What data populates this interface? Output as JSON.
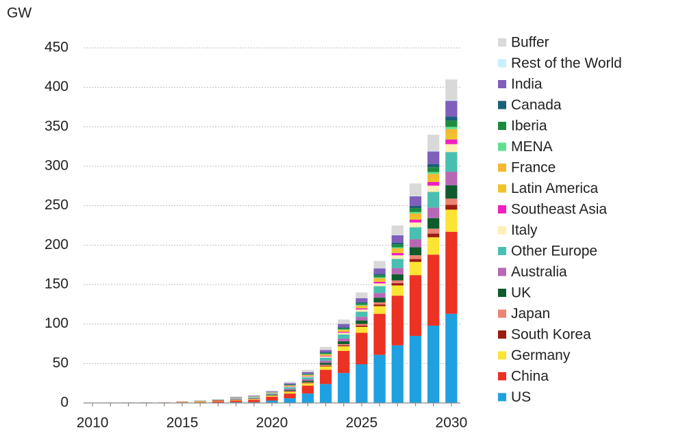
{
  "chart_data": {
    "type": "stacked_bar",
    "y_label": "GW",
    "x": [
      2010,
      2011,
      2012,
      2013,
      2014,
      2015,
      2016,
      2017,
      2018,
      2019,
      2020,
      2021,
      2022,
      2023,
      2024,
      2025,
      2026,
      2027,
      2028,
      2029,
      2030
    ],
    "xlim": [
      2009.5,
      2030.5
    ],
    "xticks": [
      2010,
      2015,
      2020,
      2025,
      2030
    ],
    "ylim": [
      0,
      450
    ],
    "yticks": [
      0,
      50,
      100,
      150,
      200,
      250,
      300,
      350,
      400,
      450
    ],
    "grid": true,
    "legend": "right",
    "series": [
      {
        "name": "US",
        "color": "#1fa0e0",
        "values": [
          0.1,
          0.1,
          0.1,
          0.1,
          0.1,
          0.2,
          0.3,
          0.5,
          1,
          1,
          3,
          6,
          12,
          24,
          38,
          49,
          61,
          73,
          85,
          98,
          113
        ]
      },
      {
        "name": "China",
        "color": "#eb3223",
        "values": [
          0,
          0.1,
          0.1,
          0.1,
          0.2,
          0.5,
          0.7,
          1.5,
          2,
          3,
          5,
          6,
          10,
          18,
          28,
          40,
          52,
          63,
          77,
          90,
          104
        ]
      },
      {
        "name": "Germany",
        "color": "#fbe433",
        "values": [
          0.1,
          0.1,
          0.2,
          0.2,
          0.3,
          0.4,
          0.7,
          0.5,
          0.7,
          0.9,
          1.2,
          2.2,
          2.9,
          4.2,
          5.8,
          7.4,
          9.7,
          12.9,
          16.8,
          22,
          28
        ]
      },
      {
        "name": "South Korea",
        "color": "#9b1c12",
        "values": [
          0.1,
          0.1,
          0.1,
          0.1,
          0.1,
          0.2,
          0.3,
          0.5,
          0.2,
          0.2,
          0.2,
          0.5,
          0.6,
          0.9,
          1.2,
          1.6,
          2.1,
          2.8,
          3.6,
          4.7,
          6
        ]
      },
      {
        "name": "Japan",
        "color": "#ec8475",
        "values": [
          0.1,
          0.1,
          0.1,
          0.2,
          0.2,
          0.4,
          0.5,
          0.5,
          0.2,
          0.2,
          0.3,
          0.6,
          0.8,
          1.2,
          1.6,
          2.1,
          2.7,
          3.6,
          4.8,
          6.2,
          8
        ]
      },
      {
        "name": "UK",
        "color": "#0f5b2c",
        "values": [
          0,
          0,
          0,
          0,
          0,
          0.1,
          0.2,
          0.3,
          0.4,
          0.5,
          0.7,
          1.3,
          1.8,
          2.6,
          3.5,
          4.5,
          5.9,
          7.8,
          10.2,
          13.4,
          17
        ]
      },
      {
        "name": "Australia",
        "color": "#b768b5",
        "values": [
          0,
          0,
          0,
          0,
          0,
          0,
          0.1,
          0.2,
          0.4,
          0.5,
          0.7,
          1.3,
          1.8,
          2.6,
          3.5,
          4.5,
          5.9,
          7.8,
          10.2,
          13.4,
          17
        ]
      },
      {
        "name": "Other Europe",
        "color": "#49bfb1",
        "values": [
          0,
          0,
          0,
          0,
          0,
          0.1,
          0.2,
          0.3,
          0.7,
          0.8,
          1,
          2,
          2.6,
          3.8,
          5.2,
          6.6,
          8.7,
          11.6,
          15.1,
          19.8,
          25
        ]
      },
      {
        "name": "Italy",
        "color": "#fdf0b4",
        "values": [
          0,
          0,
          0,
          0,
          0,
          0,
          0,
          0.2,
          0.3,
          0.3,
          0.4,
          0.8,
          1,
          1.5,
          2.1,
          2.7,
          3.5,
          4.6,
          6,
          7.9,
          10
        ]
      },
      {
        "name": "Southeast Asia",
        "color": "#f01fbf",
        "values": [
          0,
          0,
          0,
          0,
          0,
          0,
          0,
          0,
          0.2,
          0.2,
          0.2,
          0.5,
          0.6,
          0.9,
          1.2,
          1.6,
          2.1,
          2.8,
          3.6,
          4.7,
          6
        ]
      },
      {
        "name": "Latin America",
        "color": "#efc32a",
        "values": [
          0,
          0,
          0,
          0,
          0,
          0,
          0,
          0,
          0.2,
          0.2,
          0.2,
          0.5,
          0.6,
          0.9,
          1.2,
          1.6,
          2.1,
          2.8,
          3.6,
          4.7,
          6
        ]
      },
      {
        "name": "France",
        "color": "#f5b82e",
        "values": [
          0,
          0,
          0,
          0,
          0,
          0,
          0,
          0,
          0.2,
          0.2,
          0.3,
          0.5,
          0.7,
          1,
          1.4,
          1.8,
          2.4,
          3.2,
          4.2,
          5.5,
          7
        ]
      },
      {
        "name": "MENA",
        "color": "#5ee08f",
        "values": [
          0,
          0,
          0,
          0,
          0,
          0,
          0,
          0,
          0.1,
          0.1,
          0.1,
          0.2,
          0.3,
          0.5,
          0.6,
          0.8,
          1.1,
          1.4,
          1.9,
          2.4,
          3
        ]
      },
      {
        "name": "Iberia",
        "color": "#1e8a3e",
        "values": [
          0,
          0,
          0,
          0,
          0,
          0,
          0,
          0,
          0.2,
          0.2,
          0.3,
          0.6,
          0.8,
          1.2,
          1.6,
          2.1,
          2.7,
          3.6,
          4.8,
          6.2,
          8
        ]
      },
      {
        "name": "Canada",
        "color": "#1b5e7a",
        "values": [
          0,
          0,
          0,
          0,
          0,
          0,
          0,
          0,
          0.1,
          0.2,
          0.2,
          0.4,
          0.5,
          0.8,
          1,
          1.3,
          1.7,
          2.3,
          3,
          4,
          5
        ]
      },
      {
        "name": "India",
        "color": "#7f5fb9",
        "values": [
          0,
          0,
          0,
          0,
          0,
          0,
          0,
          0,
          0.5,
          0.6,
          0.8,
          1.6,
          2.1,
          3,
          4.2,
          5.3,
          7,
          9.3,
          12.1,
          15.8,
          20
        ]
      },
      {
        "name": "Rest of the World",
        "color": "#c6efff",
        "values": [
          0,
          0,
          0,
          0,
          0,
          0,
          0,
          0,
          0,
          0,
          0.1,
          0.1,
          0.1,
          0.1,
          0.2,
          0.3,
          0.3,
          0.4,
          0.6,
          0.8,
          1
        ]
      },
      {
        "name": "Buffer",
        "color": "#d9d9d9",
        "values": [
          0,
          0,
          0,
          0,
          0,
          0,
          0,
          0,
          0.6,
          0.8,
          1.1,
          2,
          2.7,
          3.9,
          5.4,
          6.9,
          9,
          12,
          15.7,
          20.5,
          26
        ]
      }
    ]
  }
}
